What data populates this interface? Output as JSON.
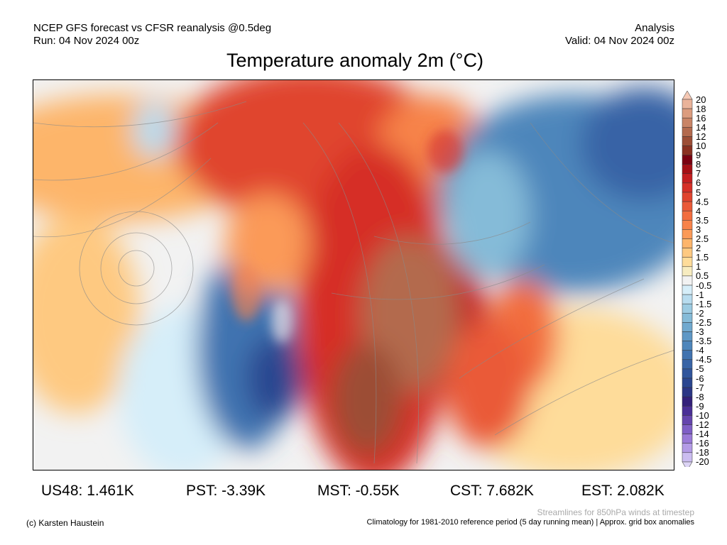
{
  "header": {
    "left_line1": "NCEP GFS forecast vs CFSR reanalysis @0.5deg",
    "left_line2": "Run: 04 Nov 2024 00z",
    "right_line1": "Analysis",
    "right_line2": "Valid: 04 Nov 2024 00z",
    "title": "Temperature anomaly 2m (°C)"
  },
  "map": {
    "region": "North America",
    "overlay": "850hPa wind streamlines"
  },
  "colorbar": {
    "labels": [
      "20",
      "18",
      "16",
      "14",
      "12",
      "10",
      "9",
      "8",
      "7",
      "6",
      "5",
      "4.5",
      "4",
      "3.5",
      "3",
      "2.5",
      "2",
      "1.5",
      "1",
      "0.5",
      "-0.5",
      "-1",
      "-1.5",
      "-2",
      "-2.5",
      "-3",
      "-3.5",
      "-4",
      "-4.5",
      "-5",
      "-6",
      "-7",
      "-8",
      "-9",
      "-10",
      "-12",
      "-14",
      "-16",
      "-18",
      "-20"
    ],
    "colors": [
      "#f5c8b4",
      "#eab39a",
      "#dc9c7e",
      "#c98466",
      "#b36a4e",
      "#9c4e36",
      "#8a3020",
      "#7a0010",
      "#a50f15",
      "#c41e20",
      "#d62f27",
      "#e0442e",
      "#ea5a38",
      "#f26d3e",
      "#f7834a",
      "#fb9a58",
      "#fdb56b",
      "#fec981",
      "#fedc9a",
      "#f7ecc0",
      "#f2f2f2",
      "#d6eef9",
      "#b8dcef",
      "#9ccbe2",
      "#85bbd8",
      "#70a9cf",
      "#5e98c6",
      "#4e86bb",
      "#4173b0",
      "#3864a6",
      "#30559c",
      "#2a4690",
      "#2b3685",
      "#33207a",
      "#4a2f96",
      "#6545ad",
      "#7f5fc6",
      "#9a7ad8",
      "#b39be6",
      "#cbbdf0",
      "#dcd4f5"
    ]
  },
  "stats": [
    {
      "label": "US48: 1.461K"
    },
    {
      "label": "PST: -3.39K"
    },
    {
      "label": "MST: -0.55K"
    },
    {
      "label": "CST: 7.682K"
    },
    {
      "label": "EST: 2.082K"
    }
  ],
  "footer": {
    "copyright": "(c) Karsten Haustein",
    "streamlines_note": "Streamlines for 850hPa winds at timestep",
    "climatology_note": "Climatology for 1981-2010 reference period (5 day running mean) | Approx. grid box anomalies"
  }
}
